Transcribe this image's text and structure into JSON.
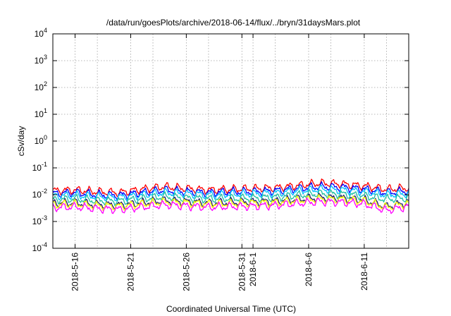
{
  "chart_data": {
    "type": "line",
    "title": "/data/run/goesPlots/archive/2018-06-14/flux/../bryn/31daysMars.plot",
    "xlabel": "Coordinated Universal Time (UTC)",
    "ylabel": "cSv/day",
    "y_scale": "log",
    "ylim": [
      0.0001,
      10000
    ],
    "xlim": [
      "2018-05-14",
      "2018-06-15"
    ],
    "y_ticks": [
      {
        "base": "10",
        "exp": "-4",
        "value": 0.0001
      },
      {
        "base": "10",
        "exp": "-3",
        "value": 0.001
      },
      {
        "base": "10",
        "exp": "-2",
        "value": 0.01
      },
      {
        "base": "10",
        "exp": "-1",
        "value": 0.1
      },
      {
        "base": "10",
        "exp": "0",
        "value": 1
      },
      {
        "base": "10",
        "exp": "1",
        "value": 10
      },
      {
        "base": "10",
        "exp": "2",
        "value": 100
      },
      {
        "base": "10",
        "exp": "3",
        "value": 1000
      },
      {
        "base": "10",
        "exp": "4",
        "value": 10000
      }
    ],
    "x_ticks": [
      {
        "label": "2018-5-16",
        "date": "2018-05-16"
      },
      {
        "label": "2018-5-21",
        "date": "2018-05-21"
      },
      {
        "label": "2018-5-26",
        "date": "2018-05-26"
      },
      {
        "label": "2018-5-31",
        "date": "2018-05-31"
      },
      {
        "label": "2018-6-1",
        "date": "2018-06-01"
      },
      {
        "label": "2018-6-6",
        "date": "2018-06-06"
      },
      {
        "label": "2018-6-11",
        "date": "2018-06-11"
      }
    ],
    "x_grid_dates": [
      "2018-05-16",
      "2018-05-18",
      "2018-05-21",
      "2018-05-23",
      "2018-05-26",
      "2018-05-28",
      "2018-05-31",
      "2018-06-01",
      "2018-06-03",
      "2018-06-06",
      "2018-06-08",
      "2018-06-11",
      "2018-06-13"
    ],
    "grid": true,
    "series": [
      {
        "color": "#ff0000",
        "x": [
          "2018-05-14",
          "2018-05-16",
          "2018-05-18",
          "2018-05-20",
          "2018-05-22",
          "2018-05-24",
          "2018-05-26",
          "2018-05-28",
          "2018-05-30",
          "2018-06-01",
          "2018-06-03",
          "2018-06-05",
          "2018-06-07",
          "2018-06-09",
          "2018-06-11",
          "2018-06-13",
          "2018-06-15"
        ],
        "values": [
          0.014,
          0.015,
          0.013,
          0.012,
          0.016,
          0.02,
          0.017,
          0.015,
          0.016,
          0.017,
          0.018,
          0.022,
          0.027,
          0.025,
          0.021,
          0.016,
          0.018
        ]
      },
      {
        "color": "#0000ff",
        "x": [
          "2018-05-14",
          "2018-05-16",
          "2018-05-18",
          "2018-05-20",
          "2018-05-22",
          "2018-05-24",
          "2018-05-26",
          "2018-05-28",
          "2018-05-30",
          "2018-06-01",
          "2018-06-03",
          "2018-06-05",
          "2018-06-07",
          "2018-06-09",
          "2018-06-11",
          "2018-06-13",
          "2018-06-15"
        ],
        "values": [
          0.011,
          0.012,
          0.01,
          0.0095,
          0.012,
          0.015,
          0.013,
          0.012,
          0.013,
          0.013,
          0.014,
          0.017,
          0.02,
          0.019,
          0.016,
          0.012,
          0.014
        ]
      },
      {
        "color": "#00bfff",
        "x": [
          "2018-05-14",
          "2018-05-16",
          "2018-05-18",
          "2018-05-20",
          "2018-05-22",
          "2018-05-24",
          "2018-05-26",
          "2018-05-28",
          "2018-05-30",
          "2018-06-01",
          "2018-06-03",
          "2018-06-05",
          "2018-06-07",
          "2018-06-09",
          "2018-06-11",
          "2018-06-13",
          "2018-06-15"
        ],
        "values": [
          0.009,
          0.0095,
          0.0085,
          0.008,
          0.0098,
          0.012,
          0.011,
          0.0098,
          0.0105,
          0.011,
          0.0115,
          0.014,
          0.016,
          0.015,
          0.013,
          0.01,
          0.011
        ]
      },
      {
        "color": "#20c0a0",
        "x": [
          "2018-05-14",
          "2018-05-16",
          "2018-05-18",
          "2018-05-20",
          "2018-05-22",
          "2018-05-24",
          "2018-05-26",
          "2018-05-28",
          "2018-05-30",
          "2018-06-01",
          "2018-06-03",
          "2018-06-05",
          "2018-06-07",
          "2018-06-09",
          "2018-06-11",
          "2018-06-13",
          "2018-06-15"
        ],
        "values": [
          0.0065,
          0.007,
          0.006,
          0.0058,
          0.007,
          0.0085,
          0.0075,
          0.007,
          0.0072,
          0.0075,
          0.008,
          0.0095,
          0.011,
          0.0105,
          0.009,
          0.0068,
          0.0075
        ]
      },
      {
        "color": "#191970",
        "x": [
          "2018-05-14",
          "2018-05-16",
          "2018-05-18",
          "2018-05-20",
          "2018-05-22",
          "2018-05-24",
          "2018-05-26",
          "2018-05-28",
          "2018-05-30",
          "2018-06-01",
          "2018-06-03",
          "2018-06-05",
          "2018-06-07",
          "2018-06-09",
          "2018-06-11",
          "2018-06-13",
          "2018-06-15"
        ],
        "values": [
          0.0048,
          0.005,
          0.0043,
          0.0041,
          0.005,
          0.006,
          0.0055,
          0.005,
          0.0052,
          0.0054,
          0.0057,
          0.0068,
          0.0078,
          0.0075,
          0.0064,
          0.0036,
          0.0052
        ]
      },
      {
        "color": "#ffff00",
        "x": [
          "2018-05-14",
          "2018-05-16",
          "2018-05-18",
          "2018-05-20",
          "2018-05-22",
          "2018-05-24",
          "2018-05-26",
          "2018-05-28",
          "2018-05-30",
          "2018-06-01",
          "2018-06-03",
          "2018-06-05",
          "2018-06-07",
          "2018-06-09",
          "2018-06-11",
          "2018-06-13",
          "2018-06-15"
        ],
        "values": [
          0.0043,
          0.0045,
          0.0039,
          0.0037,
          0.0045,
          0.0054,
          0.005,
          0.0045,
          0.0047,
          0.0049,
          0.0051,
          0.0061,
          0.007,
          0.0067,
          0.0058,
          0.0034,
          0.0047
        ]
      },
      {
        "color": "#ff00ff",
        "x": [
          "2018-05-14",
          "2018-05-16",
          "2018-05-18",
          "2018-05-20",
          "2018-05-22",
          "2018-05-24",
          "2018-05-26",
          "2018-05-28",
          "2018-05-30",
          "2018-06-01",
          "2018-06-03",
          "2018-06-05",
          "2018-06-07",
          "2018-06-09",
          "2018-06-11",
          "2018-06-13",
          "2018-06-15"
        ],
        "values": [
          0.0033,
          0.0035,
          0.003,
          0.0028,
          0.0034,
          0.0042,
          0.0038,
          0.0034,
          0.0036,
          0.0037,
          0.004,
          0.0047,
          0.0055,
          0.0052,
          0.0045,
          0.0026,
          0.0036
        ]
      }
    ]
  }
}
